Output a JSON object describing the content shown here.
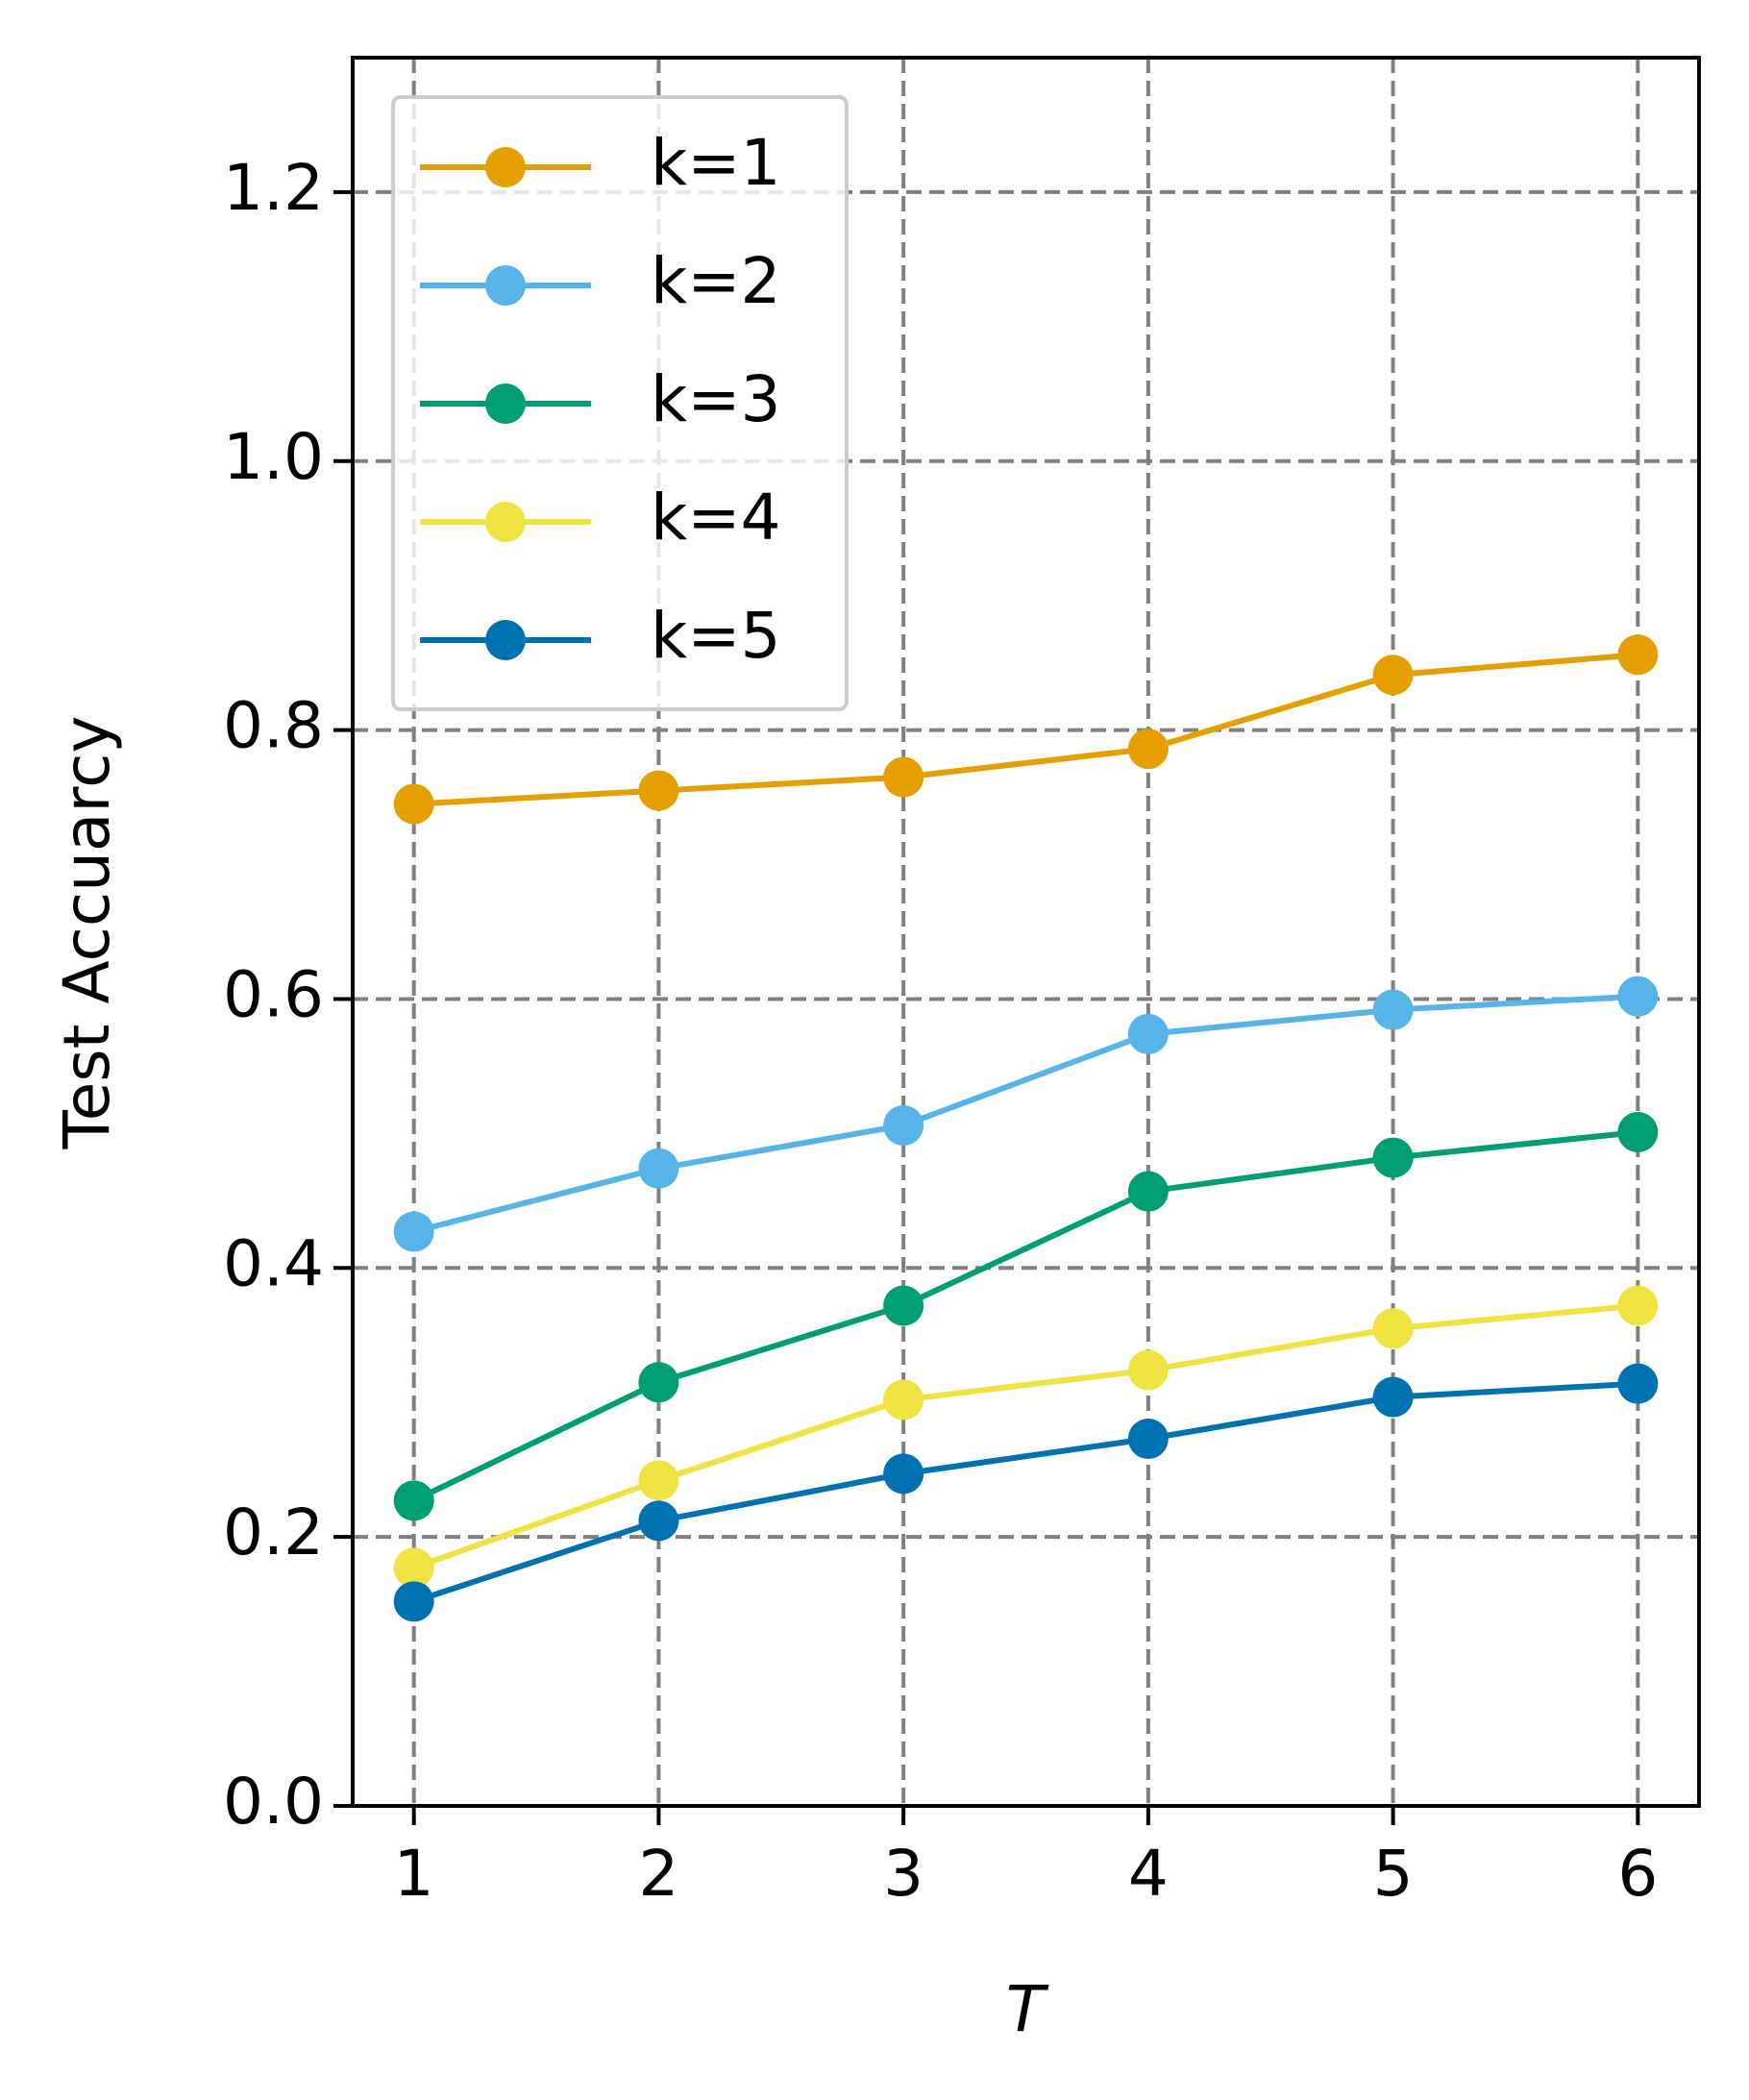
{
  "chart_data": {
    "type": "line",
    "xlabel": "T",
    "ylabel": "Test Accuarcy",
    "x": [
      1,
      2,
      3,
      4,
      5,
      6
    ],
    "series": [
      {
        "name": "k=1",
        "color": "#E69F00",
        "values": [
          0.745,
          0.755,
          0.765,
          0.786,
          0.841,
          0.856
        ]
      },
      {
        "name": "k=2",
        "color": "#56B4E9",
        "values": [
          0.427,
          0.474,
          0.506,
          0.574,
          0.592,
          0.602
        ]
      },
      {
        "name": "k=3",
        "color": "#009E73",
        "values": [
          0.227,
          0.315,
          0.372,
          0.457,
          0.482,
          0.501
        ]
      },
      {
        "name": "k=4",
        "color": "#F0E442",
        "values": [
          0.177,
          0.242,
          0.302,
          0.324,
          0.355,
          0.372
        ]
      },
      {
        "name": "k=5",
        "color": "#0072B2",
        "values": [
          0.152,
          0.212,
          0.247,
          0.273,
          0.304,
          0.314
        ]
      }
    ],
    "xlim": [
      0.75,
      6.25
    ],
    "xticks": [
      1,
      2,
      3,
      4,
      5,
      6
    ],
    "ylim": [
      0,
      1.3
    ],
    "yticks": [
      {
        "value": 0,
        "label": "0.0"
      },
      0.2,
      0.4,
      0.6,
      0.8,
      {
        "value": 1,
        "label": "1.0"
      },
      1.2
    ],
    "grid": true,
    "legend": "upper left"
  }
}
